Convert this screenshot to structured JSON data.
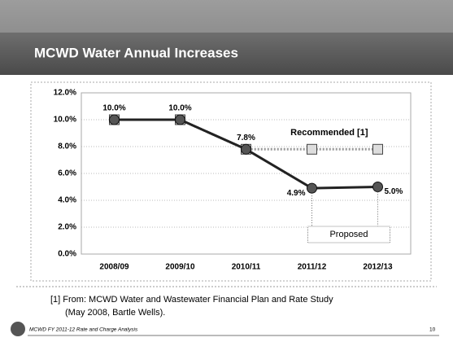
{
  "chart_data": {
    "type": "line",
    "title": "MCWD Water Annual Increases",
    "categories": [
      "2008/09",
      "2009/10",
      "2010/11",
      "2011/12",
      "2012/13"
    ],
    "series": [
      {
        "name": "Recommended [1]",
        "color": "#9a9a9a",
        "values": [
          10.0,
          10.0,
          7.8,
          7.8,
          7.8
        ]
      },
      {
        "name": "Proposed",
        "color": "#222222",
        "values": [
          10.0,
          10.0,
          7.8,
          4.9,
          5.0
        ],
        "value_labels": [
          "10.0%",
          "10.0%",
          "7.8%",
          "4.9%",
          "5.0%"
        ]
      }
    ],
    "ylim": [
      0,
      12
    ],
    "yticks": [
      {
        "value": 0,
        "label": "0.0%"
      },
      {
        "value": 2,
        "label": "2.0%"
      },
      {
        "value": 4,
        "label": "4.0%"
      },
      {
        "value": 6,
        "label": "6.0%"
      },
      {
        "value": 8,
        "label": "8.0%"
      },
      {
        "value": 10,
        "label": "10.0%"
      },
      {
        "value": 12,
        "label": "12.0%"
      }
    ],
    "grid": true,
    "footnote": [
      "[1]  From: MCWD Water and Wastewater Financial Plan and Rate Study",
      "(May 2008, Bartle Wells)."
    ],
    "footer": "MCWD FY 2011-12 Rate and Charge Analysis",
    "page_number": "10"
  }
}
